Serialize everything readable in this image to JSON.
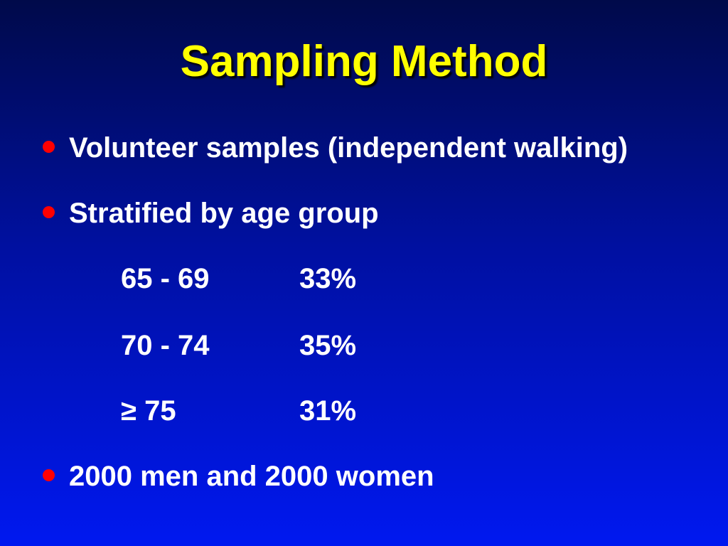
{
  "title": "Sampling Method",
  "bullets": [
    "Volunteer samples (independent walking)",
    "Stratified by age group",
    "2000 men and 2000 women"
  ],
  "age_groups": [
    {
      "range": "65 - 69",
      "percent": "33%"
    },
    {
      "range": "70 - 74",
      "percent": "35%"
    },
    {
      "range": "≥ 75",
      "percent": "31%"
    }
  ],
  "colors": {
    "title": "#ffff00",
    "bullet_dot": "#ff0000",
    "text": "#ffffff",
    "background_top": "#000a4a",
    "background_bottom": "#0018f0"
  }
}
